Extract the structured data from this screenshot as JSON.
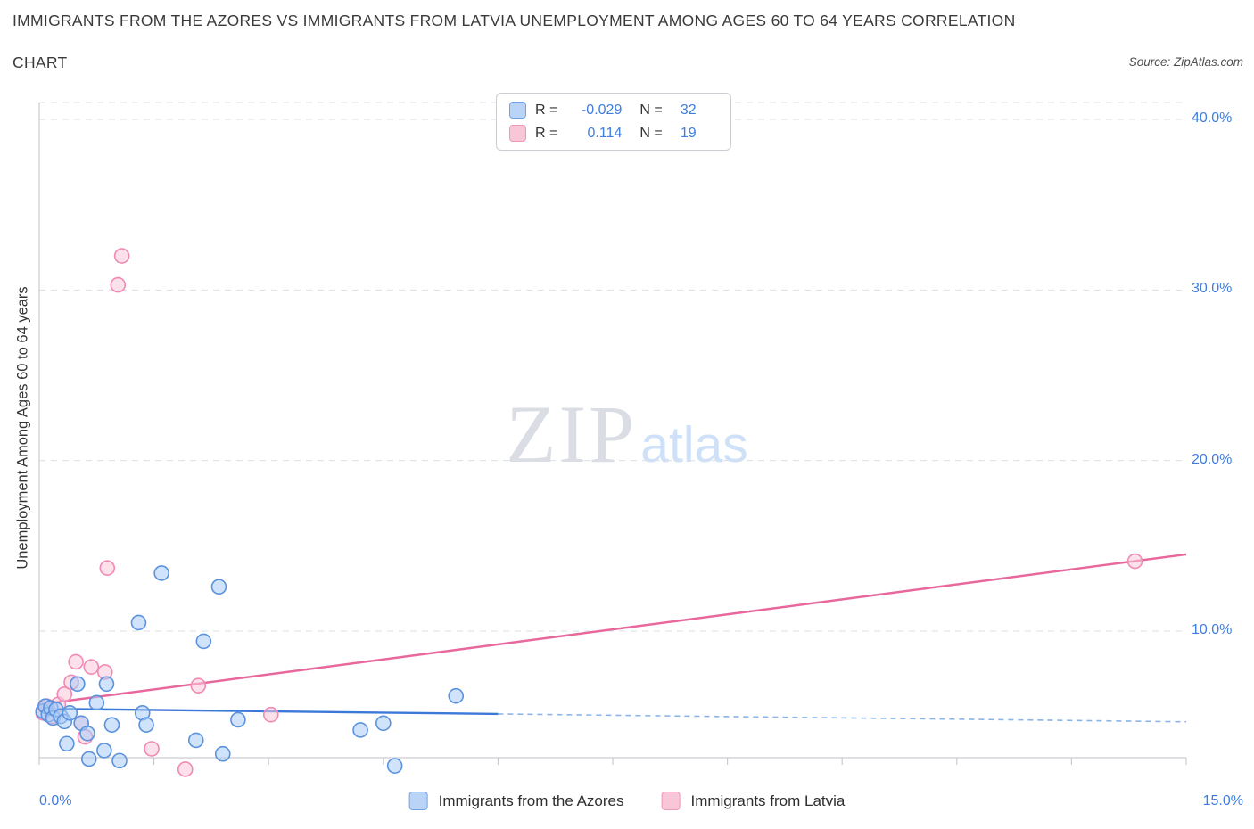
{
  "header": {
    "title_line1": "IMMIGRANTS FROM THE AZORES VS IMMIGRANTS FROM LATVIA UNEMPLOYMENT AMONG AGES 60 TO 64 YEARS CORRELATION",
    "title_line2": "CHART",
    "source": "Source: ZipAtlas.com"
  },
  "watermark": {
    "zip": "ZIP",
    "atlas": "atlas"
  },
  "axes": {
    "ylabel": "Unemployment Among Ages 60 to 64 years",
    "x_left_label": "0.0%",
    "x_right_label": "15.0%"
  },
  "legend_box": {
    "rows": [
      {
        "r_label": "R =",
        "r_value": "-0.029",
        "n_label": "N =",
        "n_value": "32"
      },
      {
        "r_label": "R =",
        "r_value": "0.114",
        "n_label": "N =",
        "n_value": "19"
      }
    ]
  },
  "bottom_legend": {
    "items": [
      {
        "label": "Immigrants from the Azores"
      },
      {
        "label": "Immigrants from Latvia"
      }
    ]
  },
  "colors": {
    "accent_blue_text": "#3f7de0",
    "grid": "#dcdfe4",
    "spine": "#c9ccd1",
    "azores_line": "#3c78d8",
    "azores_line_dashed": "#8ab4e8",
    "azores_marker_stroke": "#5b92dd",
    "azores_marker_fill": "#a9ccf6",
    "latvia_line": "#e8679c",
    "latvia_marker_stroke": "#f08ab4",
    "latvia_marker_fill": "#f9c9db"
  },
  "chart_data": {
    "type": "scatter",
    "title": "Immigrants from the Azores vs Immigrants from Latvia Unemployment Among Ages 60 to 64 years Correlation Chart",
    "ylabel": "Unemployment Among Ages 60 to 64 years",
    "xlim": [
      0,
      15
    ],
    "ylim": [
      0,
      41
    ],
    "x_unit": "percent",
    "y_unit": "percent",
    "grid": "horizontal-dashed",
    "legend_position": "bottom-center",
    "y_ticks": [
      {
        "value": 40,
        "label": "40.0%"
      },
      {
        "value": 30,
        "label": "30.0%"
      },
      {
        "value": 20,
        "label": "20.0%"
      },
      {
        "value": 10,
        "label": "10.0%"
      }
    ],
    "series": [
      {
        "name": "Immigrants from the Azores",
        "R": -0.029,
        "N": 32,
        "points": [
          [
            0.05,
            5.3
          ],
          [
            0.08,
            5.6
          ],
          [
            0.12,
            5.1
          ],
          [
            0.15,
            5.5
          ],
          [
            0.18,
            4.9
          ],
          [
            0.22,
            5.4
          ],
          [
            0.28,
            5.0
          ],
          [
            0.33,
            4.7
          ],
          [
            0.36,
            3.4
          ],
          [
            0.4,
            5.2
          ],
          [
            0.5,
            6.9
          ],
          [
            0.55,
            4.6
          ],
          [
            0.63,
            4.0
          ],
          [
            0.65,
            2.5
          ],
          [
            0.75,
            5.8
          ],
          [
            0.85,
            3.0
          ],
          [
            0.88,
            6.9
          ],
          [
            0.95,
            4.5
          ],
          [
            1.05,
            2.4
          ],
          [
            1.3,
            10.5
          ],
          [
            1.35,
            5.2
          ],
          [
            1.4,
            4.5
          ],
          [
            1.6,
            13.4
          ],
          [
            2.05,
            3.6
          ],
          [
            2.15,
            9.4
          ],
          [
            2.35,
            12.6
          ],
          [
            2.4,
            2.8
          ],
          [
            2.6,
            4.8
          ],
          [
            4.2,
            4.2
          ],
          [
            4.5,
            4.6
          ],
          [
            4.65,
            2.1
          ],
          [
            5.45,
            6.2
          ]
        ]
      },
      {
        "name": "Immigrants from Latvia",
        "R": 0.114,
        "N": 19,
        "points": [
          [
            0.05,
            5.2
          ],
          [
            0.1,
            5.6
          ],
          [
            0.18,
            5.0
          ],
          [
            0.25,
            5.7
          ],
          [
            0.33,
            6.3
          ],
          [
            0.42,
            7.0
          ],
          [
            0.48,
            8.2
          ],
          [
            0.55,
            4.6
          ],
          [
            0.6,
            3.8
          ],
          [
            0.68,
            7.9
          ],
          [
            0.86,
            7.6
          ],
          [
            0.89,
            13.7
          ],
          [
            1.03,
            30.3
          ],
          [
            1.08,
            32.0
          ],
          [
            1.47,
            3.1
          ],
          [
            1.91,
            1.9
          ],
          [
            2.08,
            6.8
          ],
          [
            3.03,
            5.1
          ],
          [
            14.33,
            14.1
          ]
        ]
      }
    ],
    "trendlines": [
      {
        "series": "Immigrants from the Azores",
        "x_start": 0,
        "y_start": 5.45,
        "x_end": 15,
        "y_end": 4.68,
        "solid_until_x": 6.0,
        "style": "solid-then-dashed"
      },
      {
        "series": "Immigrants from Latvia",
        "x_start": 0,
        "y_start": 5.7,
        "x_end": 15,
        "y_end": 14.5,
        "style": "solid"
      }
    ]
  }
}
